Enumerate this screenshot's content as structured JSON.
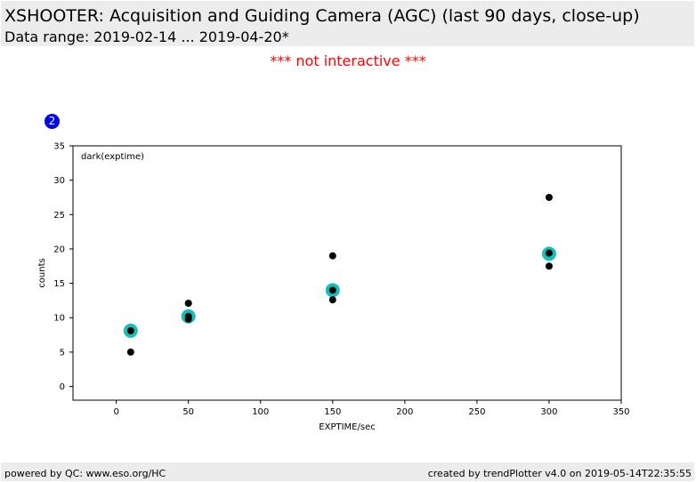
{
  "header": {
    "title": "XSHOOTER: Acquisition and Guiding Camera (AGC) (last 90 days, close-up)",
    "subtitle": "Data range: 2019-02-14 ... 2019-04-20*"
  },
  "notice": "*** not interactive ***",
  "badge": "2",
  "footer": {
    "left": "powered by QC: www.eso.org/HC",
    "right": "created by trendPlotter v4.0 on 2019-05-14T22:35:55"
  },
  "colors": {
    "point": "#000000",
    "mean": "#17bebb",
    "badge": "#0000ee",
    "notice": "#ff0000"
  },
  "chart_data": {
    "type": "scatter",
    "annotation": "dark(exptime)",
    "xlabel": "EXPTIME/sec",
    "ylabel": "counts",
    "xlim": [
      -30,
      350
    ],
    "ylim": [
      -2,
      35
    ],
    "xticks": [
      0,
      50,
      100,
      150,
      200,
      250,
      300,
      350
    ],
    "yticks": [
      0,
      5,
      10,
      15,
      20,
      25,
      30,
      35
    ],
    "grid": false,
    "series": [
      {
        "values": [
          {
            "x": 10,
            "y": 5.0
          },
          {
            "x": 10,
            "y": 8.1
          },
          {
            "x": 50,
            "y": 9.8
          },
          {
            "x": 50,
            "y": 10.2
          },
          {
            "x": 50,
            "y": 12.1
          },
          {
            "x": 150,
            "y": 12.6
          },
          {
            "x": 150,
            "y": 14.0
          },
          {
            "x": 150,
            "y": 19.0
          },
          {
            "x": 300,
            "y": 17.5
          },
          {
            "x": 300,
            "y": 19.4
          },
          {
            "x": 300,
            "y": 27.5
          }
        ]
      },
      {
        "values": [
          {
            "x": 10,
            "y": 8.1
          },
          {
            "x": 50,
            "y": 10.2
          },
          {
            "x": 150,
            "y": 14.0
          },
          {
            "x": 300,
            "y": 19.3
          }
        ]
      }
    ]
  }
}
